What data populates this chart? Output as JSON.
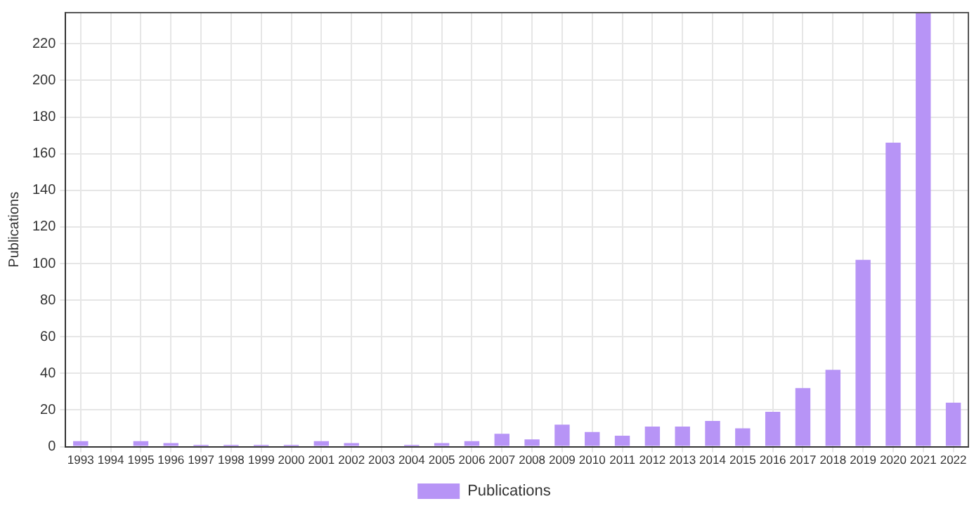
{
  "chart_data": {
    "type": "bar",
    "ylabel": "Publications",
    "categories": [
      "1993",
      "1994",
      "1995",
      "1996",
      "1997",
      "1998",
      "1999",
      "2000",
      "2001",
      "2002",
      "2003",
      "2004",
      "2005",
      "2006",
      "2007",
      "2008",
      "2009",
      "2010",
      "2011",
      "2012",
      "2013",
      "2014",
      "2015",
      "2016",
      "2017",
      "2018",
      "2019",
      "2020",
      "2021",
      "2022"
    ],
    "series": [
      {
        "name": "Publications",
        "color": "#b794f6",
        "values": [
          3,
          0,
          3,
          2,
          1,
          1,
          1,
          1,
          3,
          2,
          0,
          1,
          2,
          3,
          7,
          4,
          12,
          8,
          6,
          11,
          11,
          14,
          10,
          19,
          32,
          42,
          102,
          166,
          237,
          24
        ]
      }
    ],
    "ylim": [
      0,
      237
    ],
    "yticks": [
      0,
      20,
      40,
      60,
      80,
      100,
      120,
      140,
      160,
      180,
      200,
      220
    ],
    "grid": true,
    "legend": "bottom"
  }
}
